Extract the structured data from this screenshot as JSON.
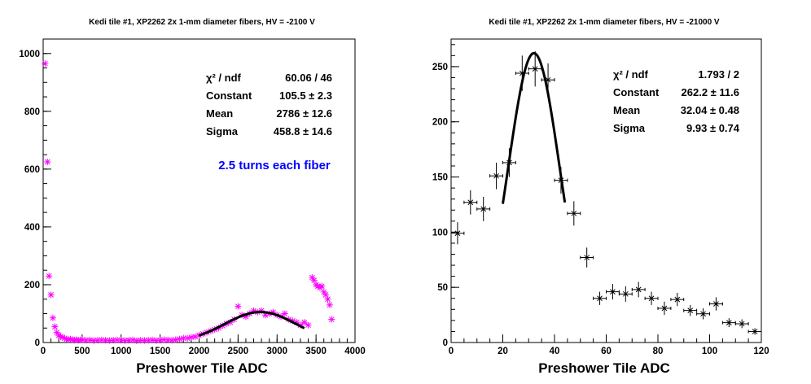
{
  "chart_data": [
    {
      "type": "scatter",
      "title": "Kedi tile #1, XP2262 2x 1-mm diameter fibers, HV = -2100 V",
      "xlabel": "Preshower Tile ADC",
      "ylabel": "",
      "xlim": [
        0,
        4000
      ],
      "ylim": [
        0,
        1050
      ],
      "xticks": [
        "0",
        "500",
        "1000",
        "1500",
        "2000",
        "2500",
        "3000",
        "3500",
        "4000"
      ],
      "yticks": [
        "0",
        "200",
        "400",
        "600",
        "800",
        "1000"
      ],
      "marker_color": "#ff00ff",
      "fit_color": "#000000",
      "annotation": "2.5 turns each fiber",
      "annotation_color": "#0000ff",
      "stats": [
        {
          "label": "χ² / ndf",
          "value": "60.06 / 46"
        },
        {
          "label": "Constant",
          "value": "105.5 ± 2.3"
        },
        {
          "label": "Mean",
          "value": "2786 ± 12.6"
        },
        {
          "label": "Sigma",
          "value": "458.8 ± 14.6"
        }
      ],
      "fit": {
        "constant": 105.5,
        "mean": 2786,
        "sigma": 458.8,
        "range": [
          2000,
          3350
        ]
      },
      "series": [
        {
          "x": [
            25,
            55,
            75,
            100,
            125,
            150,
            175,
            200,
            225,
            250,
            275,
            300,
            325,
            350,
            375,
            400,
            425,
            450,
            475,
            500,
            550,
            600,
            650,
            700,
            750,
            800,
            850,
            900,
            950,
            1000,
            1050,
            1100,
            1150,
            1200,
            1250,
            1300,
            1350,
            1400,
            1450,
            1500,
            1550,
            1600,
            1650,
            1700,
            1750,
            1800,
            1850,
            1900,
            1950,
            2000,
            2050,
            2100,
            2150,
            2200,
            2250,
            2300,
            2350,
            2400,
            2450,
            2500,
            2550,
            2600,
            2650,
            2700,
            2750,
            2800,
            2850,
            2900,
            2950,
            3000,
            3050,
            3100,
            3150,
            3200,
            3250,
            3300,
            3350,
            3400,
            3450,
            3475,
            3500,
            3525,
            3550,
            3575,
            3600,
            3625,
            3650,
            3675,
            3700
          ],
          "y": [
            965,
            625,
            230,
            165,
            85,
            55,
            35,
            25,
            20,
            18,
            15,
            12,
            10,
            12,
            10,
            8,
            10,
            8,
            9,
            10,
            8,
            9,
            7,
            8,
            9,
            8,
            7,
            8,
            9,
            8,
            7,
            8,
            9,
            6,
            8,
            7,
            8,
            9,
            7,
            8,
            10,
            9,
            8,
            10,
            12,
            15,
            15,
            18,
            20,
            25,
            30,
            35,
            40,
            45,
            50,
            58,
            65,
            70,
            80,
            125,
            95,
            90,
            100,
            110,
            105,
            110,
            95,
            100,
            105,
            95,
            90,
            100,
            80,
            75,
            70,
            60,
            70,
            60,
            225,
            215,
            200,
            195,
            190,
            195,
            175,
            165,
            150,
            130,
            80
          ]
        }
      ]
    },
    {
      "type": "scatter",
      "title": "Kedi tile #1, XP2262 2x 1-mm diameter fibers, HV = -21000 V",
      "xlabel": "Preshower Tile ADC",
      "ylabel": "",
      "xlim": [
        0,
        120
      ],
      "ylim": [
        0,
        275
      ],
      "xticks": [
        "0",
        "20",
        "40",
        "60",
        "80",
        "100",
        "120"
      ],
      "yticks": [
        "0",
        "50",
        "100",
        "150",
        "200",
        "250"
      ],
      "marker_color": "#000000",
      "fit_color": "#000000",
      "stats": [
        {
          "label": "χ² / ndf",
          "value": "1.793 / 2"
        },
        {
          "label": "Constant",
          "value": "262.2 ± 11.6"
        },
        {
          "label": "Mean",
          "value": "32.04 ± 0.48"
        },
        {
          "label": "Sigma",
          "value": "9.93 ± 0.74"
        }
      ],
      "fit": {
        "constant": 262.2,
        "mean": 32.04,
        "sigma": 9.93,
        "range": [
          20,
          44
        ]
      },
      "series": [
        {
          "x": [
            2.5,
            7.5,
            12.5,
            17.5,
            22.5,
            27.5,
            32.5,
            37.5,
            42.5,
            47.5,
            52.5,
            57.5,
            62.5,
            67.5,
            72.5,
            77.5,
            82.5,
            87.5,
            92.5,
            97.5,
            102.5,
            107.5,
            112.5,
            117.5
          ],
          "y": [
            99,
            127,
            121,
            151,
            163,
            244,
            248,
            238,
            147,
            117,
            77,
            40,
            46,
            44,
            48,
            40,
            31,
            39,
            29,
            26,
            35,
            18,
            17,
            10
          ],
          "yerr": [
            10,
            11,
            11,
            12,
            13,
            16,
            16,
            15,
            12,
            11,
            9,
            6,
            7,
            7,
            7,
            6,
            6,
            6,
            5,
            5,
            6,
            4,
            4,
            3
          ],
          "xerr": 2.5
        }
      ]
    }
  ]
}
